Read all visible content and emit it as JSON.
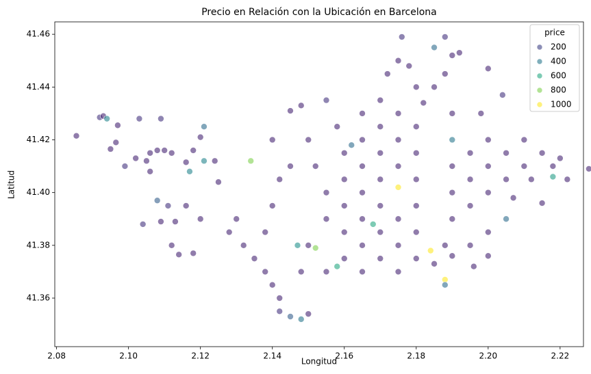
{
  "chart_data": {
    "type": "scatter",
    "title": "Precio en Relación con la Ubicación en Barcelona",
    "x_label": "Longitud",
    "y_label": "Latitud",
    "xlim": [
      2.0795,
      2.2265
    ],
    "ylim": [
      41.3416,
      41.4647
    ],
    "xticks": [
      2.08,
      {
        "value": 2.1,
        "label": "2.10"
      },
      2.12,
      2.14,
      2.16,
      2.18,
      {
        "value": 2.2,
        "label": "2.20"
      },
      2.22
    ],
    "yticks": [
      41.36,
      41.38,
      {
        "value": 41.4,
        "label": "41.40"
      },
      41.42,
      41.44,
      41.46
    ],
    "hue_name": "price",
    "hue_lim": [
      0,
      1000
    ],
    "colormap": [
      "#440154",
      "#472d7b",
      "#3b528b",
      "#2c728e",
      "#21918c",
      "#28ae80",
      "#5ec962",
      "#addc30",
      "#fde725"
    ],
    "alpha": 0.6,
    "legend_levels": [
      200,
      400,
      600,
      800,
      1000
    ],
    "legend_position": "upper right",
    "x": [
      2.0855,
      2.092,
      2.093,
      2.094,
      2.097,
      2.095,
      2.0965,
      2.099,
      2.102,
      2.103,
      2.105,
      2.106,
      2.109,
      2.108,
      2.11,
      2.112,
      2.106,
      2.108,
      2.104,
      2.109,
      2.111,
      2.113,
      2.116,
      2.117,
      2.118,
      2.12,
      2.121,
      2.121,
      2.116,
      2.112,
      2.114,
      2.118,
      2.12,
      2.124,
      2.125,
      2.13,
      2.128,
      2.132,
      2.135,
      2.138,
      2.14,
      2.142,
      2.142,
      2.145,
      2.148,
      2.15,
      2.138,
      2.14,
      2.142,
      2.145,
      2.14,
      2.145,
      2.148,
      2.15,
      2.152,
      2.155,
      2.155,
      2.15,
      2.148,
      2.155,
      2.16,
      2.16,
      2.16,
      2.16,
      2.16,
      2.158,
      2.155,
      2.165,
      2.165,
      2.165,
      2.165,
      2.165,
      2.165,
      2.165,
      2.17,
      2.17,
      2.17,
      2.17,
      2.17,
      2.17,
      2.17,
      2.172,
      2.175,
      2.176,
      2.178,
      2.18,
      2.175,
      2.175,
      2.175,
      2.175,
      2.175,
      2.175,
      2.18,
      2.18,
      2.18,
      2.18,
      2.18,
      2.18,
      2.182,
      2.185,
      2.188,
      2.185,
      2.188,
      2.19,
      2.192,
      2.19,
      2.19,
      2.19,
      2.19,
      2.19,
      2.188,
      2.19,
      2.185,
      2.188,
      2.188,
      2.184,
      2.195,
      2.195,
      2.195,
      2.2,
      2.2,
      2.2,
      2.2,
      2.204,
      2.198,
      2.205,
      2.205,
      2.21,
      2.21,
      2.212,
      2.215,
      2.218,
      2.22,
      2.222,
      2.228,
      2.215,
      2.218,
      2.207,
      2.2,
      2.205,
      2.195,
      2.2,
      2.196,
      2.134,
      2.152,
      2.175,
      2.168,
      2.158,
      2.147,
      2.162
    ],
    "values": [
      41.4215,
      41.4285,
      41.429,
      41.428,
      41.4255,
      41.4165,
      41.419,
      41.41,
      41.413,
      41.428,
      41.412,
      41.415,
      41.428,
      41.416,
      41.416,
      41.415,
      41.408,
      41.397,
      41.388,
      41.389,
      41.395,
      41.389,
      41.4115,
      41.408,
      41.416,
      41.421,
      41.425,
      41.412,
      41.395,
      41.38,
      41.3765,
      41.377,
      41.39,
      41.412,
      41.404,
      41.39,
      41.385,
      41.38,
      41.375,
      41.37,
      41.365,
      41.36,
      41.355,
      41.353,
      41.352,
      41.354,
      41.385,
      41.395,
      41.405,
      41.41,
      41.42,
      41.431,
      41.433,
      41.42,
      41.41,
      41.4,
      41.39,
      41.38,
      41.37,
      41.37,
      41.375,
      41.385,
      41.395,
      41.405,
      41.415,
      41.425,
      41.435,
      41.43,
      41.42,
      41.41,
      41.4,
      41.39,
      41.38,
      41.37,
      41.375,
      41.385,
      41.395,
      41.405,
      41.415,
      41.425,
      41.435,
      41.445,
      41.45,
      41.459,
      41.448,
      41.44,
      41.43,
      41.42,
      41.41,
      41.39,
      41.38,
      41.37,
      41.375,
      41.385,
      41.395,
      41.405,
      41.415,
      41.425,
      41.434,
      41.44,
      41.445,
      41.455,
      41.459,
      41.452,
      41.453,
      41.43,
      41.42,
      41.41,
      41.4,
      41.39,
      41.38,
      41.376,
      41.373,
      41.367,
      41.365,
      41.378,
      41.405,
      41.415,
      41.395,
      41.4,
      41.41,
      41.42,
      41.447,
      41.437,
      41.43,
      41.415,
      41.405,
      41.41,
      41.42,
      41.405,
      41.415,
      41.41,
      41.413,
      41.405,
      41.409,
      41.396,
      41.406,
      41.398,
      41.385,
      41.39,
      41.38,
      41.376,
      41.372,
      41.412,
      41.379,
      41.402,
      41.388,
      41.372,
      41.38,
      41.418
    ],
    "hue": [
      100,
      150,
      100,
      450,
      100,
      100,
      100,
      150,
      100,
      150,
      100,
      100,
      150,
      100,
      100,
      100,
      100,
      300,
      150,
      100,
      150,
      100,
      100,
      450,
      100,
      100,
      350,
      450,
      100,
      100,
      100,
      100,
      100,
      100,
      100,
      100,
      100,
      100,
      100,
      100,
      100,
      100,
      150,
      300,
      400,
      100,
      100,
      100,
      100,
      100,
      100,
      100,
      100,
      100,
      100,
      100,
      100,
      100,
      100,
      100,
      100,
      100,
      100,
      100,
      100,
      100,
      150,
      100,
      100,
      100,
      100,
      100,
      100,
      100,
      100,
      100,
      100,
      100,
      100,
      100,
      100,
      100,
      100,
      150,
      100,
      100,
      100,
      100,
      100,
      100,
      100,
      100,
      100,
      100,
      100,
      100,
      100,
      100,
      100,
      100,
      100,
      350,
      150,
      100,
      100,
      100,
      400,
      100,
      100,
      100,
      100,
      100,
      100,
      1000,
      350,
      1000,
      100,
      100,
      100,
      100,
      100,
      100,
      100,
      150,
      100,
      100,
      100,
      100,
      100,
      100,
      100,
      100,
      100,
      100,
      100,
      100,
      550,
      100,
      100,
      350,
      100,
      100,
      100,
      800,
      800,
      1000,
      600,
      600,
      500,
      350
    ]
  }
}
